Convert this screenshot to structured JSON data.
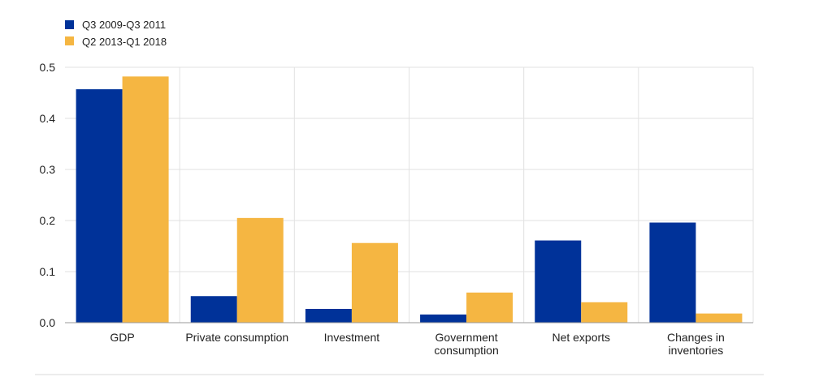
{
  "chart_data": {
    "type": "bar",
    "categories": [
      [
        "GDP"
      ],
      [
        "Private consumption"
      ],
      [
        "Investment"
      ],
      [
        "Government",
        "consumption"
      ],
      [
        "Net exports"
      ],
      [
        "Changes in",
        "inventories"
      ]
    ],
    "series": [
      {
        "name": "Q3 2009-Q3 2011",
        "color": "#003299",
        "values": [
          0.457,
          0.052,
          0.027,
          0.016,
          0.161,
          0.196
        ]
      },
      {
        "name": "Q2 2013-Q1 2018",
        "color": "#F5B642",
        "values": [
          0.482,
          0.205,
          0.156,
          0.059,
          0.04,
          0.018
        ]
      }
    ],
    "yticks": [
      "0.0",
      "0.1",
      "0.2",
      "0.3",
      "0.4",
      "0.5"
    ],
    "ylim": [
      0,
      0.5
    ],
    "grid": true,
    "legend": "top-left"
  }
}
